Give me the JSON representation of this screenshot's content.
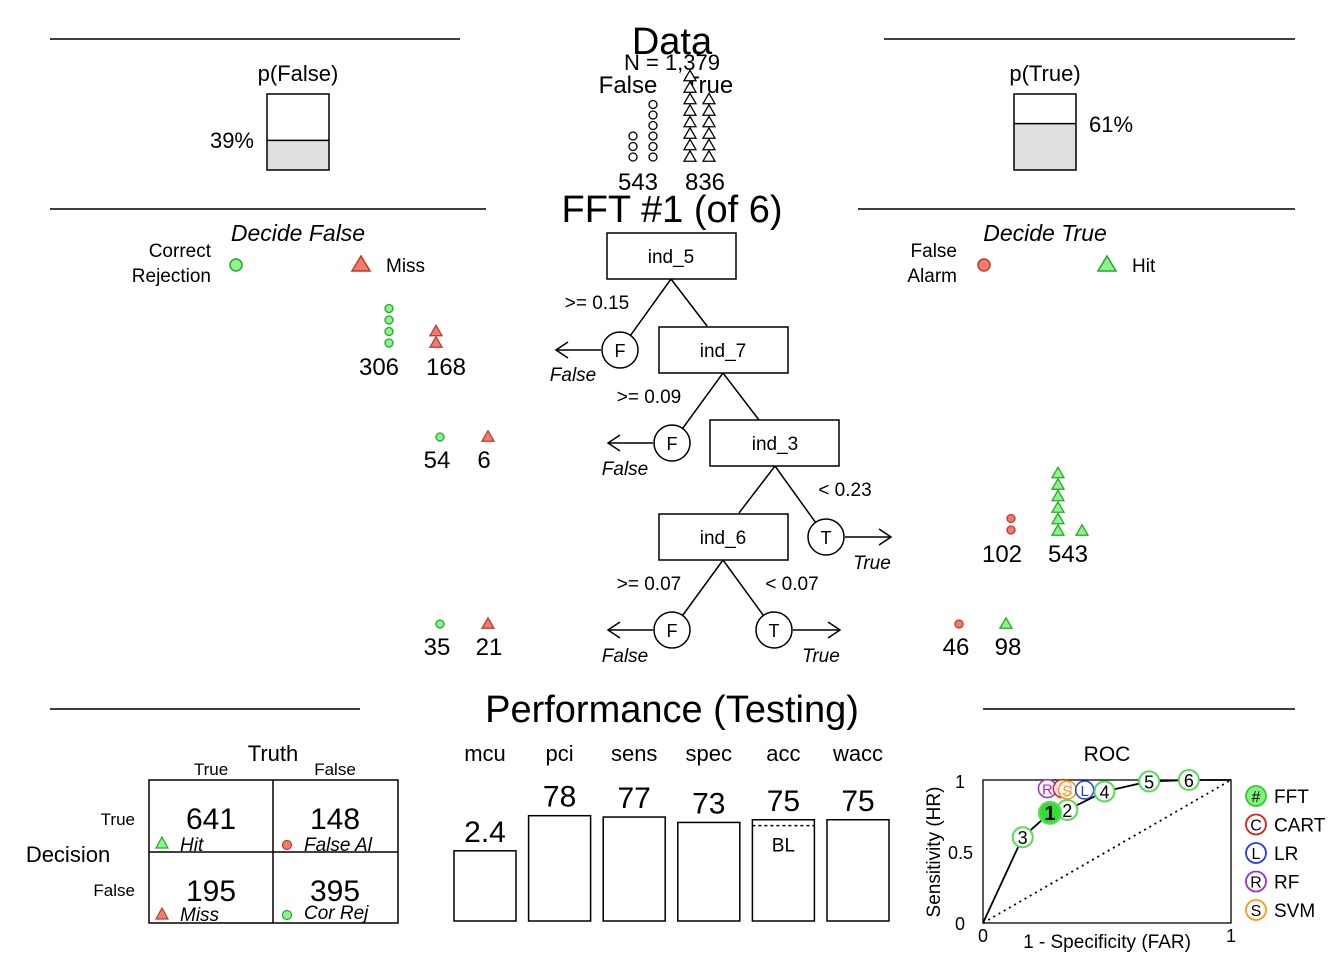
{
  "data_panel": {
    "title": "Data",
    "n_label": "N = 1,379",
    "col_false": "False",
    "col_true": "True",
    "count_false": "543",
    "count_true": "836",
    "p_false": {
      "label": "p(False)",
      "value_text": "39%",
      "fraction": 0.39
    },
    "p_true": {
      "label": "p(True)",
      "value_text": "61%",
      "fraction": 0.61
    },
    "icons_false": 9,
    "icons_true": 14
  },
  "tree": {
    "title": "FFT #1 (of 6)",
    "decide_false": "Decide False",
    "decide_true": "Decide True",
    "legend": {
      "cr": [
        "Correct",
        "Rejection"
      ],
      "miss": "Miss",
      "fa": [
        "False",
        "Alarm"
      ],
      "hit": "Hit"
    },
    "nodes": [
      {
        "cue": "ind_5",
        "false_label": ">= 0.15",
        "exit": "F",
        "exit_text": "False",
        "cr": "306",
        "miss": "168",
        "cr_icons": 4,
        "miss_icons": 2
      },
      {
        "cue": "ind_7",
        "false_label": ">= 0.09",
        "exit": "F",
        "exit_text": "False",
        "cr": "54",
        "miss": "6",
        "cr_icons": 1,
        "miss_icons": 1
      },
      {
        "cue": "ind_3",
        "true_label": "< 0.23",
        "exit": "T",
        "exit_text": "True",
        "fa": "102",
        "hit": "543",
        "fa_icons": 2,
        "hit_icons": 7
      },
      {
        "cue": "ind_6",
        "false_label": ">= 0.07",
        "true_label": "< 0.07",
        "exit_f_text": "False",
        "exit_t_text": "True",
        "cr": "35",
        "miss": "21",
        "fa": "46",
        "hit": "98",
        "cr_icons": 1,
        "miss_icons": 1,
        "fa_icons": 1,
        "hit_icons": 1
      }
    ]
  },
  "performance": {
    "title": "Performance (Testing)",
    "matrix": {
      "truth": "Truth",
      "col_true": "True",
      "col_false": "False",
      "decision": "Decision",
      "row_true": "True",
      "row_false": "False",
      "cells": [
        {
          "value": "641",
          "label": "Hit"
        },
        {
          "value": "148",
          "label": "False Al"
        },
        {
          "value": "195",
          "label": "Miss"
        },
        {
          "value": "395",
          "label": "Cor Rej"
        }
      ]
    },
    "bars": [
      {
        "name": "mcu",
        "value_text": "2.4",
        "fill": 0.52
      },
      {
        "name": "pci",
        "value_text": "78",
        "fill": 0.78
      },
      {
        "name": "sens",
        "value_text": "77",
        "fill": 0.77
      },
      {
        "name": "spec",
        "value_text": "73",
        "fill": 0.73
      },
      {
        "name": "acc",
        "value_text": "75",
        "fill": 0.75,
        "baseline_text": "BL",
        "baseline": 0.61
      },
      {
        "name": "wacc",
        "value_text": "75",
        "fill": 0.75
      }
    ],
    "roc": {
      "title": "ROC",
      "xlabel": "1 - Specificity (FAR)",
      "ylabel": "Sensitivity (HR)",
      "x_ticks": [
        "0",
        "1"
      ],
      "y_ticks": [
        "0",
        "0.5",
        "1"
      ],
      "fft_points": [
        {
          "label": "1",
          "far": 0.27,
          "hr": 0.77
        },
        {
          "label": "2",
          "far": 0.34,
          "hr": 0.79
        },
        {
          "label": "3",
          "far": 0.16,
          "hr": 0.6
        },
        {
          "label": "4",
          "far": 0.49,
          "hr": 0.92
        },
        {
          "label": "5",
          "far": 0.67,
          "hr": 0.99
        },
        {
          "label": "6",
          "far": 0.83,
          "hr": 1.0
        }
      ],
      "model_points": [
        {
          "label": "R",
          "far": 0.26,
          "hr": 0.94,
          "color": "#9932cc"
        },
        {
          "label": "C",
          "far": 0.32,
          "hr": 0.94,
          "color": "#e31a1c"
        },
        {
          "label": "S",
          "far": 0.34,
          "hr": 0.93,
          "color": "#f39c12"
        },
        {
          "label": "L",
          "far": 0.41,
          "hr": 0.93,
          "color": "#1f3bff"
        }
      ],
      "legend": [
        {
          "symbol": "#",
          "name": "FFT",
          "color": "#33cc33",
          "fill": "#7ff57f"
        },
        {
          "symbol": "C",
          "name": "CART",
          "color": "#e31a1c",
          "fill": "#ffffff"
        },
        {
          "symbol": "L",
          "name": "LR",
          "color": "#1f3bff",
          "fill": "#ffffff"
        },
        {
          "symbol": "R",
          "name": "RF",
          "color": "#9932cc",
          "fill": "#ffffff"
        },
        {
          "symbol": "S",
          "name": "SVM",
          "color": "#f39c12",
          "fill": "#ffffff"
        }
      ]
    }
  },
  "colors": {
    "green_fill": "#8ef28e",
    "green_line": "#22aa22",
    "red_fill": "#f07c6c",
    "red_line": "#c0392b",
    "bar_gray": "#e0e0e0"
  }
}
